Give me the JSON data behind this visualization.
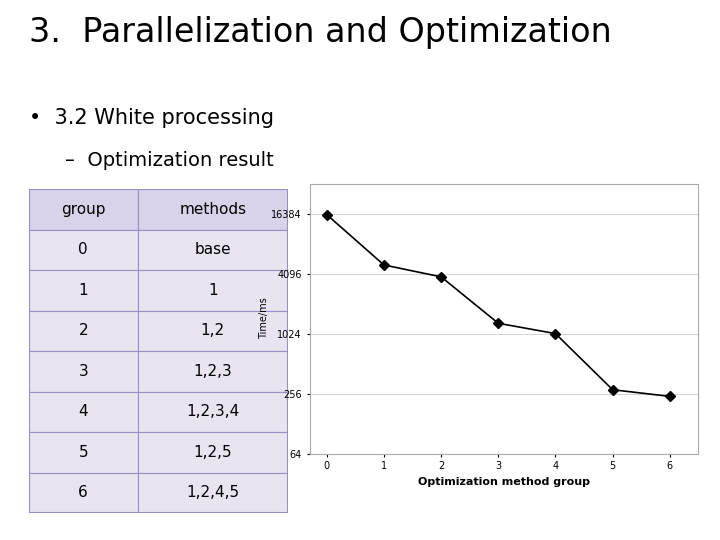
{
  "title": "3.  Parallelization and Optimization",
  "bullet1": "•  3.2 White processing",
  "bullet2": "–  Optimization result",
  "table_groups": [
    0,
    1,
    2,
    3,
    4,
    5,
    6
  ],
  "table_methods": [
    "base",
    "1",
    "1,2",
    "1,2,3",
    "1,2,3,4",
    "1,2,5",
    "1,2,4,5"
  ],
  "x_data": [
    0,
    1,
    2,
    3,
    4,
    5,
    6
  ],
  "y_data": [
    16000,
    5000,
    3800,
    1300,
    1024,
    280,
    240
  ],
  "xlabel": "Optimization method group",
  "ylabel": "Time/ms",
  "yticks": [
    64,
    256,
    1024,
    4096,
    16384
  ],
  "ytick_labels": [
    "64",
    "256",
    "1024",
    "4096",
    "16384"
  ],
  "xticks": [
    0,
    1,
    2,
    3,
    4,
    5,
    6
  ],
  "bg_color": "#ffffff",
  "table_header_color": "#d9d2e9",
  "table_row_color": "#ead1dc",
  "table_all_color": "#e8e4f0",
  "table_border_color": "#9b8ec4",
  "chart_line_color": "#000000",
  "chart_marker": "D",
  "chart_marker_color": "#000000",
  "grid_color": "#cccccc",
  "font_color": "#000000",
  "title_fontsize": 24,
  "bullet_fontsize": 15,
  "subbullet_fontsize": 14,
  "chart_border_color": "#aaaaaa",
  "table_fontsize": 11
}
